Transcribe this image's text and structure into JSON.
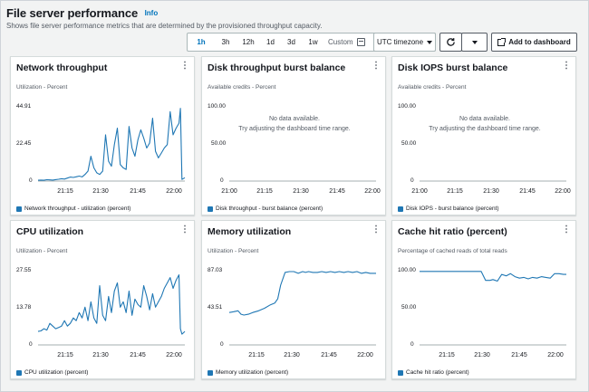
{
  "page": {
    "title": "File server performance",
    "info_link": "Info",
    "subtitle": "Shows file server performance metrics that are determined by the provisioned throughput capacity."
  },
  "toolbar": {
    "ranges": [
      "1h",
      "3h",
      "12h",
      "1d",
      "3d",
      "1w"
    ],
    "selected_range": "1h",
    "custom_label": "Custom",
    "timezone_label": "UTC timezone",
    "add_dashboard_label": "Add to dashboard"
  },
  "colors": {
    "series": "#1f77b4",
    "accent": "#0073bb"
  },
  "chart_data": [
    {
      "id": "network",
      "type": "line",
      "title": "Network throughput",
      "unit_label": "Utilization - Percent",
      "yticks": [
        "44.91",
        "22.45",
        "0"
      ],
      "ylim": [
        0,
        44.91
      ],
      "xticks": [
        "21:15",
        "21:30",
        "21:45",
        "22:00"
      ],
      "xlim": [
        21.0,
        22.0
      ],
      "legend": "Network throughput - utilization (percent)",
      "series": [
        {
          "name": "Network throughput - utilization (percent)",
          "x": [
            21.0,
            21.02,
            21.04,
            21.06,
            21.08,
            21.1,
            21.12,
            21.14,
            21.16,
            21.18,
            21.2,
            21.22,
            21.24,
            21.26,
            21.28,
            21.3,
            21.32,
            21.34,
            21.36,
            21.38,
            21.4,
            21.42,
            21.44,
            21.46,
            21.48,
            21.5,
            21.52,
            21.54,
            21.56,
            21.58,
            21.6,
            21.62,
            21.64,
            21.66,
            21.68,
            21.7,
            21.72,
            21.74,
            21.76,
            21.78,
            21.8,
            21.82,
            21.84,
            21.86,
            21.88,
            21.9,
            21.92,
            21.94,
            21.96,
            21.97,
            21.98,
            22.0
          ],
          "y": [
            0.5,
            0.6,
            0.5,
            0.8,
            0.7,
            0.6,
            0.9,
            1.1,
            1.4,
            1.2,
            1.8,
            2.4,
            2.2,
            2.6,
            3,
            2.5,
            4,
            6,
            15,
            8,
            5,
            4,
            6,
            28,
            12,
            9,
            22,
            32,
            10,
            8,
            7,
            33,
            20,
            15,
            25,
            31,
            26,
            20,
            23,
            38,
            18,
            14,
            17,
            20,
            22,
            42,
            28,
            32,
            35,
            44,
            1,
            2
          ]
        }
      ]
    },
    {
      "id": "disk_throughput",
      "type": "line",
      "title": "Disk throughput burst balance",
      "unit_label": "Available credits - Percent",
      "yticks": [
        "100.00",
        "50.00",
        "0"
      ],
      "ylim": [
        0,
        100
      ],
      "xticks": [
        "21:00",
        "21:15",
        "21:30",
        "21:45",
        "22:00"
      ],
      "xlim": [
        21.0,
        22.0
      ],
      "nodata_1": "No data available.",
      "nodata_2": "Try adjusting the dashboard time range.",
      "legend": "Disk throughput - burst balance (percent)",
      "series": []
    },
    {
      "id": "disk_iops",
      "type": "line",
      "title": "Disk IOPS burst balance",
      "unit_label": "Available credits - Percent",
      "yticks": [
        "100.00",
        "50.00",
        "0"
      ],
      "ylim": [
        0,
        100
      ],
      "xticks": [
        "21:00",
        "21:15",
        "21:30",
        "21:45",
        "22:00"
      ],
      "xlim": [
        21.0,
        22.0
      ],
      "nodata_1": "No data available.",
      "nodata_2": "Try adjusting the dashboard time range.",
      "legend": "Disk IOPS - burst balance (percent)",
      "series": []
    },
    {
      "id": "cpu",
      "type": "line",
      "title": "CPU utilization",
      "unit_label": "Utilization - Percent",
      "yticks": [
        "27.55",
        "13.78",
        "0"
      ],
      "ylim": [
        0,
        27.55
      ],
      "xticks": [
        "21:15",
        "21:30",
        "21:45",
        "22:00"
      ],
      "xlim": [
        21.0,
        22.0
      ],
      "legend": "CPU utilization (percent)",
      "series": [
        {
          "name": "CPU utilization (percent)",
          "x": [
            21.0,
            21.02,
            21.04,
            21.06,
            21.08,
            21.1,
            21.12,
            21.14,
            21.16,
            21.18,
            21.2,
            21.22,
            21.24,
            21.26,
            21.28,
            21.3,
            21.32,
            21.34,
            21.36,
            21.38,
            21.4,
            21.42,
            21.44,
            21.46,
            21.48,
            21.5,
            21.52,
            21.54,
            21.56,
            21.58,
            21.6,
            21.62,
            21.64,
            21.66,
            21.68,
            21.7,
            21.72,
            21.74,
            21.76,
            21.78,
            21.8,
            21.82,
            21.84,
            21.86,
            21.88,
            21.9,
            21.92,
            21.94,
            21.96,
            21.97,
            21.98,
            22.0
          ],
          "y": [
            5,
            5.2,
            6,
            5.5,
            8,
            7,
            6,
            6.5,
            7,
            9,
            7,
            8,
            10,
            9,
            12,
            10,
            14,
            9,
            16,
            10,
            8,
            22,
            11,
            9,
            18,
            12,
            20,
            23,
            14,
            16,
            12,
            20,
            11,
            17,
            15,
            14,
            22,
            18,
            13,
            19,
            14,
            16,
            18,
            21,
            23,
            25,
            21,
            24,
            26,
            6,
            4,
            5
          ]
        }
      ]
    },
    {
      "id": "memory",
      "type": "line",
      "title": "Memory utilization",
      "unit_label": "Utilization - Percent",
      "yticks": [
        "87.03",
        "43.51",
        "0"
      ],
      "ylim": [
        0,
        87.03
      ],
      "xticks": [
        "21:15",
        "21:30",
        "21:45",
        "22:00"
      ],
      "xlim": [
        21.0,
        22.0
      ],
      "legend": "Memory utilization (percent)",
      "series": [
        {
          "name": "Memory utilization (percent)",
          "x": [
            21.0,
            21.03,
            21.06,
            21.08,
            21.1,
            21.13,
            21.16,
            21.2,
            21.24,
            21.28,
            21.31,
            21.33,
            21.35,
            21.38,
            21.41,
            21.44,
            21.47,
            21.5,
            21.52,
            21.54,
            21.57,
            21.6,
            21.63,
            21.66,
            21.69,
            21.72,
            21.75,
            21.78,
            21.81,
            21.84,
            21.87,
            21.9,
            21.93,
            21.96,
            22.0
          ],
          "y": [
            38,
            39,
            40,
            36,
            35,
            36,
            38,
            40,
            43,
            47,
            49,
            54,
            70,
            85,
            86,
            86,
            84,
            86,
            85,
            86,
            85,
            85,
            86,
            85,
            86,
            85,
            86,
            85,
            86,
            85,
            86,
            84,
            85,
            84,
            84
          ]
        }
      ]
    },
    {
      "id": "cache",
      "type": "line",
      "title": "Cache hit ratio (percent)",
      "unit_label": "Percentage of cached reads of total reads",
      "yticks": [
        "100.00",
        "50.00",
        "0"
      ],
      "ylim": [
        0,
        100
      ],
      "xticks": [
        "21:15",
        "21:30",
        "21:45",
        "22:00"
      ],
      "xlim": [
        21.0,
        22.0
      ],
      "legend": "Cache hit ratio (percent)",
      "series": [
        {
          "name": "Cache hit ratio (percent)",
          "x": [
            21.0,
            21.05,
            21.1,
            21.15,
            21.2,
            21.25,
            21.3,
            21.35,
            21.38,
            21.42,
            21.45,
            21.48,
            21.5,
            21.53,
            21.56,
            21.59,
            21.62,
            21.65,
            21.68,
            21.71,
            21.74,
            21.77,
            21.8,
            21.83,
            21.86,
            21.89,
            21.92,
            21.95,
            21.98,
            22.0
          ],
          "y": [
            99,
            99,
            99,
            99,
            99,
            99,
            99,
            99,
            99,
            99,
            87,
            87,
            88,
            86,
            95,
            93,
            96,
            92,
            90,
            91,
            89,
            91,
            90,
            92,
            91,
            90,
            96,
            96,
            95,
            95
          ]
        }
      ]
    }
  ]
}
